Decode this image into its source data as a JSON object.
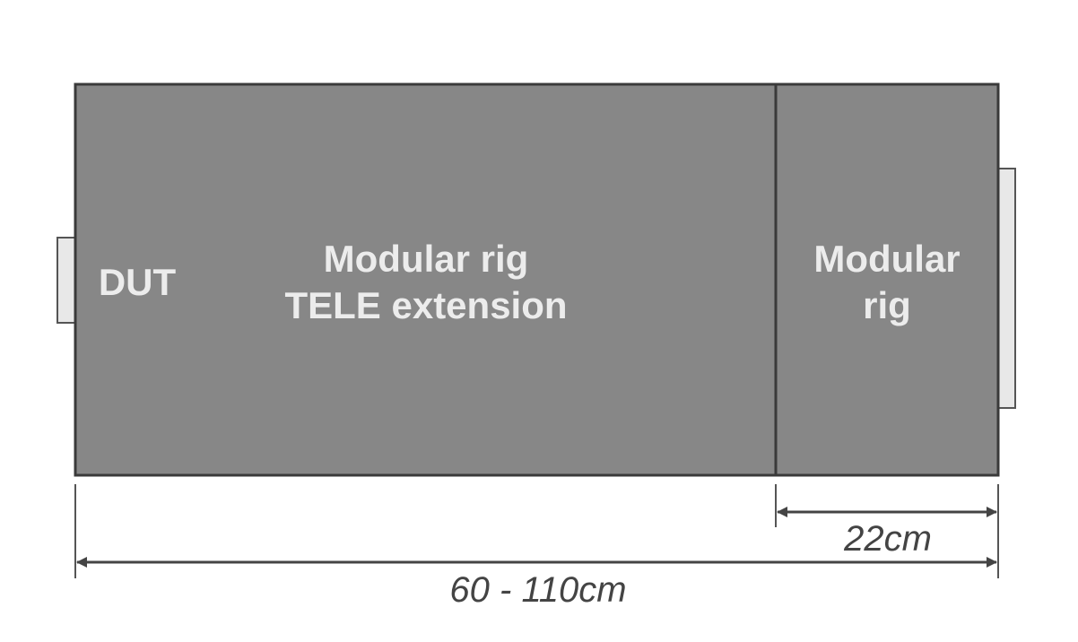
{
  "labels": {
    "dut": "DUT",
    "extension_line1": "Modular rig",
    "extension_line2": "TELE extension",
    "rig_line1": "Modular",
    "rig_line2": "rig"
  },
  "dimensions": {
    "rig_width": "22cm",
    "total_width": "60 - 110cm"
  },
  "colors": {
    "box_fill": "#878787",
    "outline": "#3a3a3a",
    "tab_fill": "#e8e8e8"
  }
}
